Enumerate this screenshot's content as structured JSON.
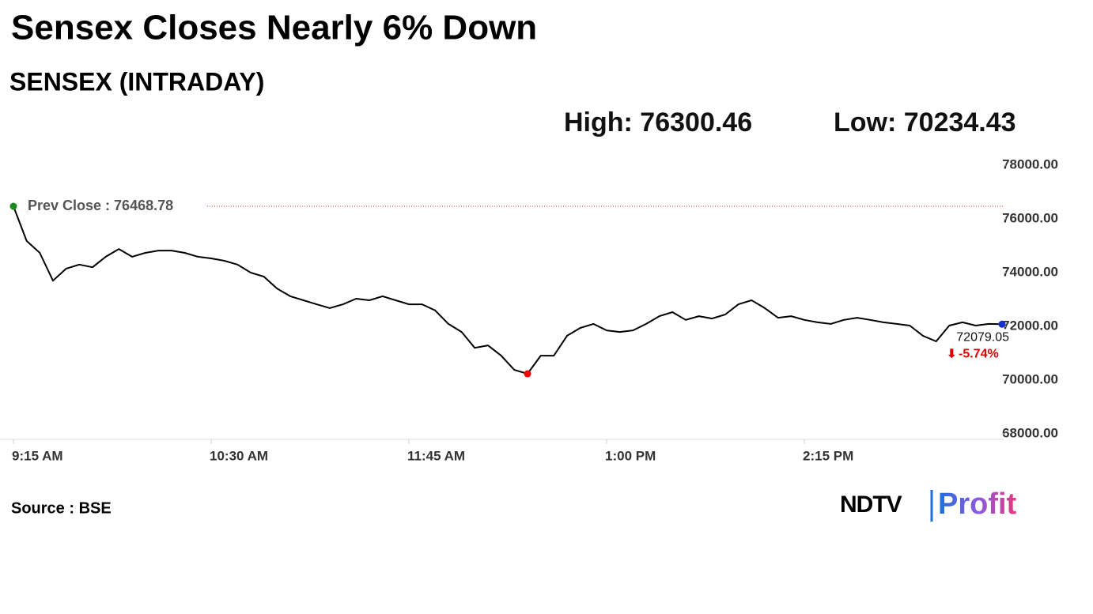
{
  "chart_data": {
    "type": "line",
    "title": "Sensex Closes Nearly 6% Down",
    "subtitle": "SENSEX (INTRADAY)",
    "high_label": "High: 76300.46",
    "low_label": "Low: 70234.43",
    "prev_close_label": "Prev Close : 76468.78",
    "prev_close": 76468.78,
    "change": "-5.74%",
    "source": "Source : BSE",
    "logo": [
      "NDTV",
      "Profit"
    ],
    "x": [
      "09:15",
      "09:20",
      "09:25",
      "09:30",
      "09:35",
      "09:40",
      "09:45",
      "09:50",
      "09:55",
      "10:00",
      "10:05",
      "10:10",
      "10:15",
      "10:20",
      "10:25",
      "10:30",
      "10:35",
      "10:40",
      "10:45",
      "10:50",
      "10:55",
      "11:00",
      "11:05",
      "11:10",
      "11:15",
      "11:20",
      "11:25",
      "11:30",
      "11:35",
      "11:40",
      "11:45",
      "11:50",
      "11:55",
      "12:00",
      "12:05",
      "12:10",
      "12:15",
      "12:20",
      "12:25",
      "12:30",
      "12:35",
      "12:40",
      "12:45",
      "12:50",
      "12:55",
      "13:00",
      "13:05",
      "13:10",
      "13:15",
      "13:20",
      "13:25",
      "13:30",
      "13:35",
      "13:40",
      "13:45",
      "13:50",
      "13:55",
      "14:00",
      "14:05",
      "14:10",
      "14:15",
      "14:20",
      "14:25",
      "14:30",
      "14:35",
      "14:40",
      "14:45",
      "14:50",
      "14:55",
      "15:00",
      "15:05",
      "15:10",
      "15:15",
      "15:20",
      "15:25",
      "15:30"
    ],
    "series": [
      {
        "name": "SENSEX",
        "color": "#000000",
        "values": [
          76468.78,
          75180,
          74735,
          73700,
          74150,
          74300,
          74200,
          74590,
          74880,
          74590,
          74735,
          74820,
          74820,
          74735,
          74590,
          74530,
          74440,
          74300,
          74000,
          73850,
          73410,
          73120,
          72970,
          72820,
          72680,
          72820,
          73030,
          72970,
          73120,
          72970,
          72820,
          72820,
          72590,
          72090,
          71790,
          71200,
          71290,
          70910,
          70380,
          70234.43,
          70910,
          70910,
          71650,
          71940,
          72090,
          71850,
          71790,
          71850,
          72090,
          72380,
          72530,
          72240,
          72380,
          72290,
          72440,
          72820,
          72970,
          72680,
          72320,
          72380,
          72240,
          72150,
          72090,
          72240,
          72320,
          72240,
          72150,
          72090,
          72030,
          71650,
          71440,
          72030,
          72150,
          72030,
          72090,
          72079.05
        ]
      }
    ],
    "xlim": [
      "09:15",
      "15:30"
    ],
    "xticks": [
      {
        "value": "09:15",
        "label": "9:15 AM"
      },
      {
        "value": "10:30",
        "label": "10:30 AM"
      },
      {
        "value": "11:45",
        "label": "11:45 AM"
      },
      {
        "value": "13:00",
        "label": "1:00 PM"
      },
      {
        "value": "14:15",
        "label": "2:15 PM"
      }
    ],
    "ylim": [
      68000,
      78000
    ],
    "yticks": [
      {
        "value": 68000,
        "label": "68000.00"
      },
      {
        "value": 70000,
        "label": "70000.00"
      },
      {
        "value": 72000,
        "label": "72000.00"
      },
      {
        "value": 74000,
        "label": "74000.00"
      },
      {
        "value": 76000,
        "label": "76000.00"
      },
      {
        "value": 78000,
        "label": "78000.00"
      }
    ],
    "grid": false
  }
}
